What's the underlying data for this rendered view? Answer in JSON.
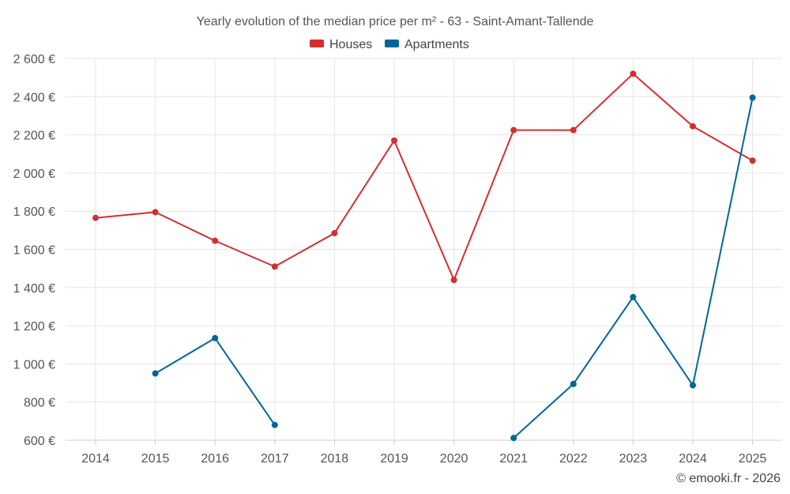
{
  "chart_data": {
    "type": "line",
    "title": "Yearly evolution of the median price per m² - 63 - Saint-Amant-Tallende",
    "x": [
      "2014",
      "2015",
      "2016",
      "2017",
      "2018",
      "2019",
      "2020",
      "2021",
      "2022",
      "2023",
      "2024",
      "2025"
    ],
    "y_ticks": [
      "600 €",
      "800 €",
      "1 000 €",
      "1 200 €",
      "1 400 €",
      "1 600 €",
      "1 800 €",
      "2 000 €",
      "2 200 €",
      "2 400 €",
      "2 600 €"
    ],
    "y_tick_values": [
      600,
      800,
      1000,
      1200,
      1400,
      1600,
      1800,
      2000,
      2200,
      2400,
      2600
    ],
    "ylim": [
      600,
      2600
    ],
    "grid": true,
    "legend_position": "top-center",
    "series": [
      {
        "name": "Houses",
        "color": "#d32f2f",
        "values": [
          1765,
          1795,
          1645,
          1510,
          1685,
          2170,
          1440,
          2225,
          2225,
          2520,
          2245,
          2065
        ]
      },
      {
        "name": "Apartments",
        "color": "#006699",
        "values": [
          null,
          950,
          1135,
          680,
          null,
          null,
          null,
          612,
          895,
          1350,
          888,
          2395
        ]
      }
    ]
  },
  "credit": "© emooki.fr - 2026"
}
